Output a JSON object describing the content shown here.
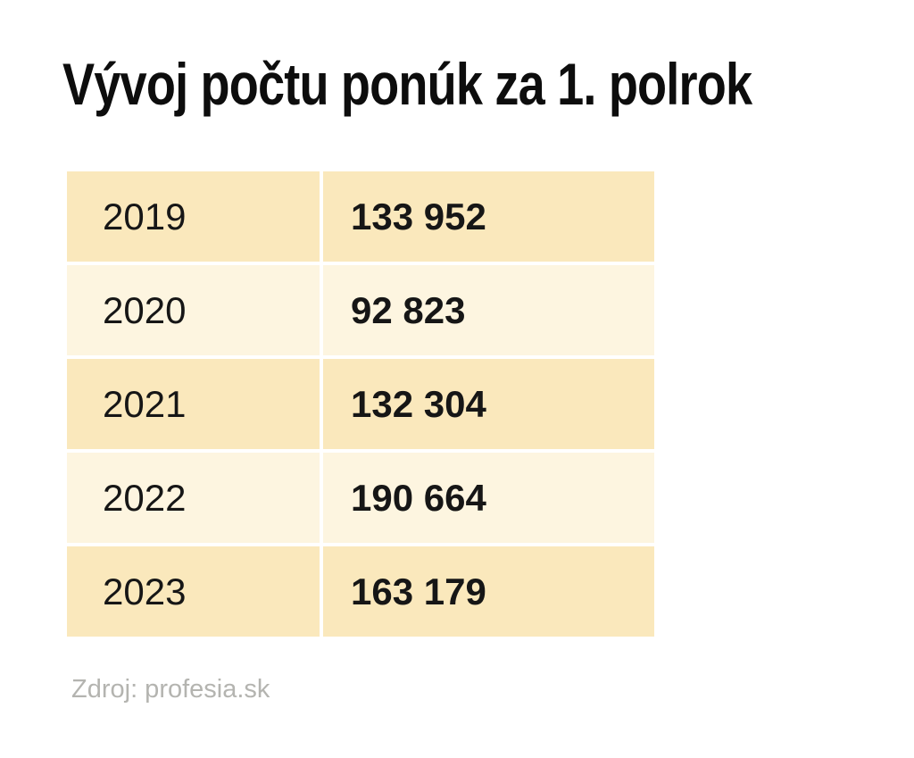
{
  "title": "Vývoj počtu ponúk za 1. polrok",
  "source": "Zdroj: profesia.sk",
  "table": {
    "rows": [
      {
        "year": "2019",
        "value": "133 952"
      },
      {
        "year": "2020",
        "value": "92 823"
      },
      {
        "year": "2021",
        "value": "132 304"
      },
      {
        "year": "2022",
        "value": "190 664"
      },
      {
        "year": "2023",
        "value": "163 179"
      }
    ]
  },
  "colors": {
    "row_dark": "#fae8bc",
    "row_light": "#fdf5e0",
    "title_text": "#0d0d0d",
    "cell_text": "#161616",
    "source_text": "#b4b4b0",
    "background": "#ffffff"
  },
  "chart_data": {
    "type": "table",
    "title": "Vývoj počtu ponúk za 1. polrok",
    "categories": [
      "2019",
      "2020",
      "2021",
      "2022",
      "2023"
    ],
    "values": [
      133952,
      92823,
      132304,
      190664,
      163179
    ],
    "source": "Zdroj: profesia.sk",
    "layout": "two-column year/value table, zebra rows, no header row"
  }
}
